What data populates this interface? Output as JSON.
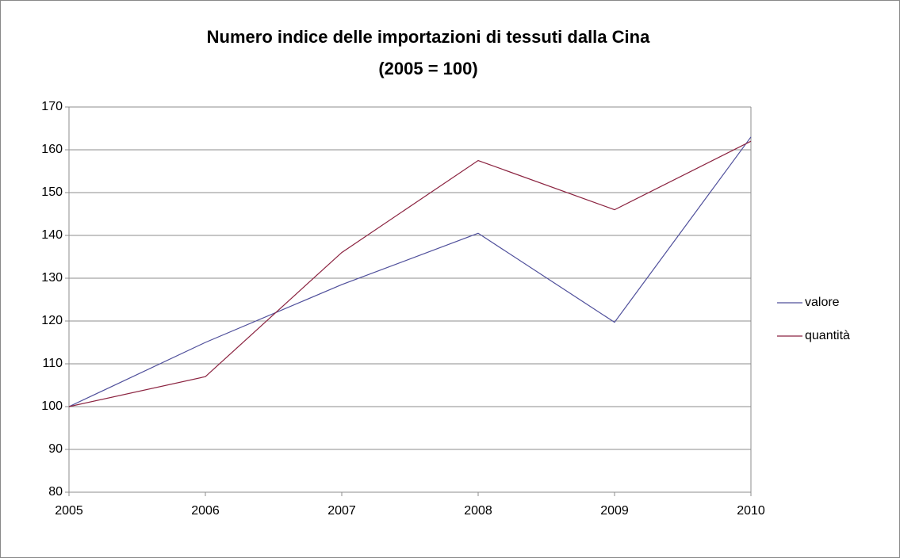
{
  "chart_data": {
    "type": "line",
    "title": [
      "Numero indice delle importazioni di tessuti dalla Cina",
      "(2005 = 100)"
    ],
    "categories": [
      "2005",
      "2006",
      "2007",
      "2008",
      "2009",
      "2010"
    ],
    "series": [
      {
        "name": "valore",
        "color": "#4f4f9b",
        "values": [
          100,
          115,
          128.5,
          140.5,
          119.7,
          163
        ]
      },
      {
        "name": "quantità",
        "color": "#8b2340",
        "values": [
          100,
          107,
          136,
          157.5,
          146,
          162
        ]
      }
    ],
    "ylim": [
      80,
      170
    ],
    "yticks": [
      80,
      90,
      100,
      110,
      120,
      130,
      140,
      150,
      160,
      170
    ],
    "grid": true,
    "legend": "right"
  }
}
